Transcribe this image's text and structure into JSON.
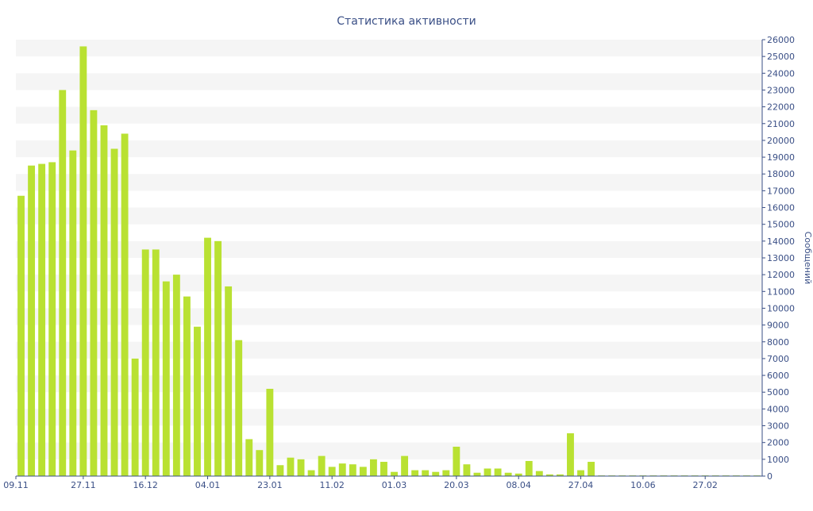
{
  "chart_data": {
    "type": "bar",
    "title": "Статистика активности",
    "ylabel": "Сообщений",
    "xlabel": "",
    "ylim": [
      0,
      26000
    ],
    "y_ticks": [
      0,
      1000,
      2000,
      3000,
      4000,
      5000,
      6000,
      7000,
      8000,
      9000,
      10000,
      11000,
      12000,
      13000,
      14000,
      15000,
      16000,
      17000,
      18000,
      19000,
      20000,
      21000,
      22000,
      23000,
      24000,
      25000,
      26000
    ],
    "x_tick_labels": [
      {
        "label": "09.11",
        "index": 0
      },
      {
        "label": "27.11",
        "index": 6.5
      },
      {
        "label": "16.12",
        "index": 12.5
      },
      {
        "label": "04.01",
        "index": 18.5
      },
      {
        "label": "23.01",
        "index": 24.5
      },
      {
        "label": "11.02",
        "index": 30.5
      },
      {
        "label": "01.03",
        "index": 36.5
      },
      {
        "label": "20.03",
        "index": 42.5
      },
      {
        "label": "08.04",
        "index": 48.5
      },
      {
        "label": "27.04",
        "index": 54.5
      },
      {
        "label": "10.06",
        "index": 60.5
      },
      {
        "label": "27.02",
        "index": 66.5
      }
    ],
    "bar_count": 72,
    "values": [
      16700,
      18500,
      18600,
      18700,
      23000,
      19400,
      25600,
      21800,
      20900,
      19500,
      20400,
      7000,
      13500,
      13500,
      11600,
      12000,
      10700,
      8900,
      14200,
      14000,
      11300,
      8100,
      2200,
      1550,
      5200,
      650,
      1100,
      1000,
      350,
      1200,
      550,
      750,
      700,
      550,
      1000,
      850,
      250,
      1200,
      350,
      350,
      250,
      350,
      1750,
      700,
      200,
      450,
      450,
      200,
      150,
      900,
      300,
      100,
      100,
      2550,
      350,
      850,
      40,
      40,
      40,
      40,
      40,
      40,
      40,
      40,
      40,
      40,
      40,
      40,
      40,
      40,
      40,
      40
    ],
    "colors": {
      "bar": "#b9e132",
      "band": "#f5f5f5",
      "axis": "#3a4f86",
      "text": "#3a4f86"
    },
    "grid": true,
    "legend": "none"
  }
}
